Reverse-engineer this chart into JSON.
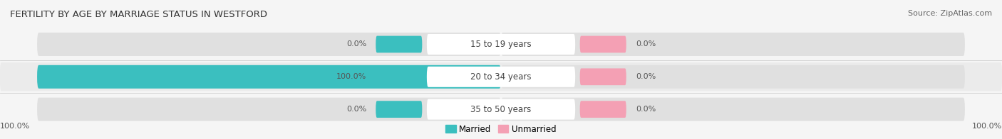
{
  "title": "FERTILITY BY AGE BY MARRIAGE STATUS IN WESTFORD",
  "source": "Source: ZipAtlas.com",
  "categories": [
    "15 to 19 years",
    "20 to 34 years",
    "35 to 50 years"
  ],
  "married_values": [
    0.0,
    100.0,
    0.0
  ],
  "unmarried_values": [
    0.0,
    0.0,
    0.0
  ],
  "married_color": "#3bbfbf",
  "unmarried_color": "#f4a0b4",
  "bar_bg_color": "#e0e0e0",
  "center_bg_color": "#f5f5f5",
  "title_fontsize": 9.5,
  "source_fontsize": 8,
  "label_fontsize": 8,
  "category_fontsize": 8.5,
  "legend_fontsize": 8.5,
  "left_axis_label": "100.0%",
  "right_axis_label": "100.0%",
  "fig_bg_color": "#f5f5f5",
  "row_bg_color_odd": "#ebebeb",
  "row_bg_color_even": "#f5f5f5"
}
